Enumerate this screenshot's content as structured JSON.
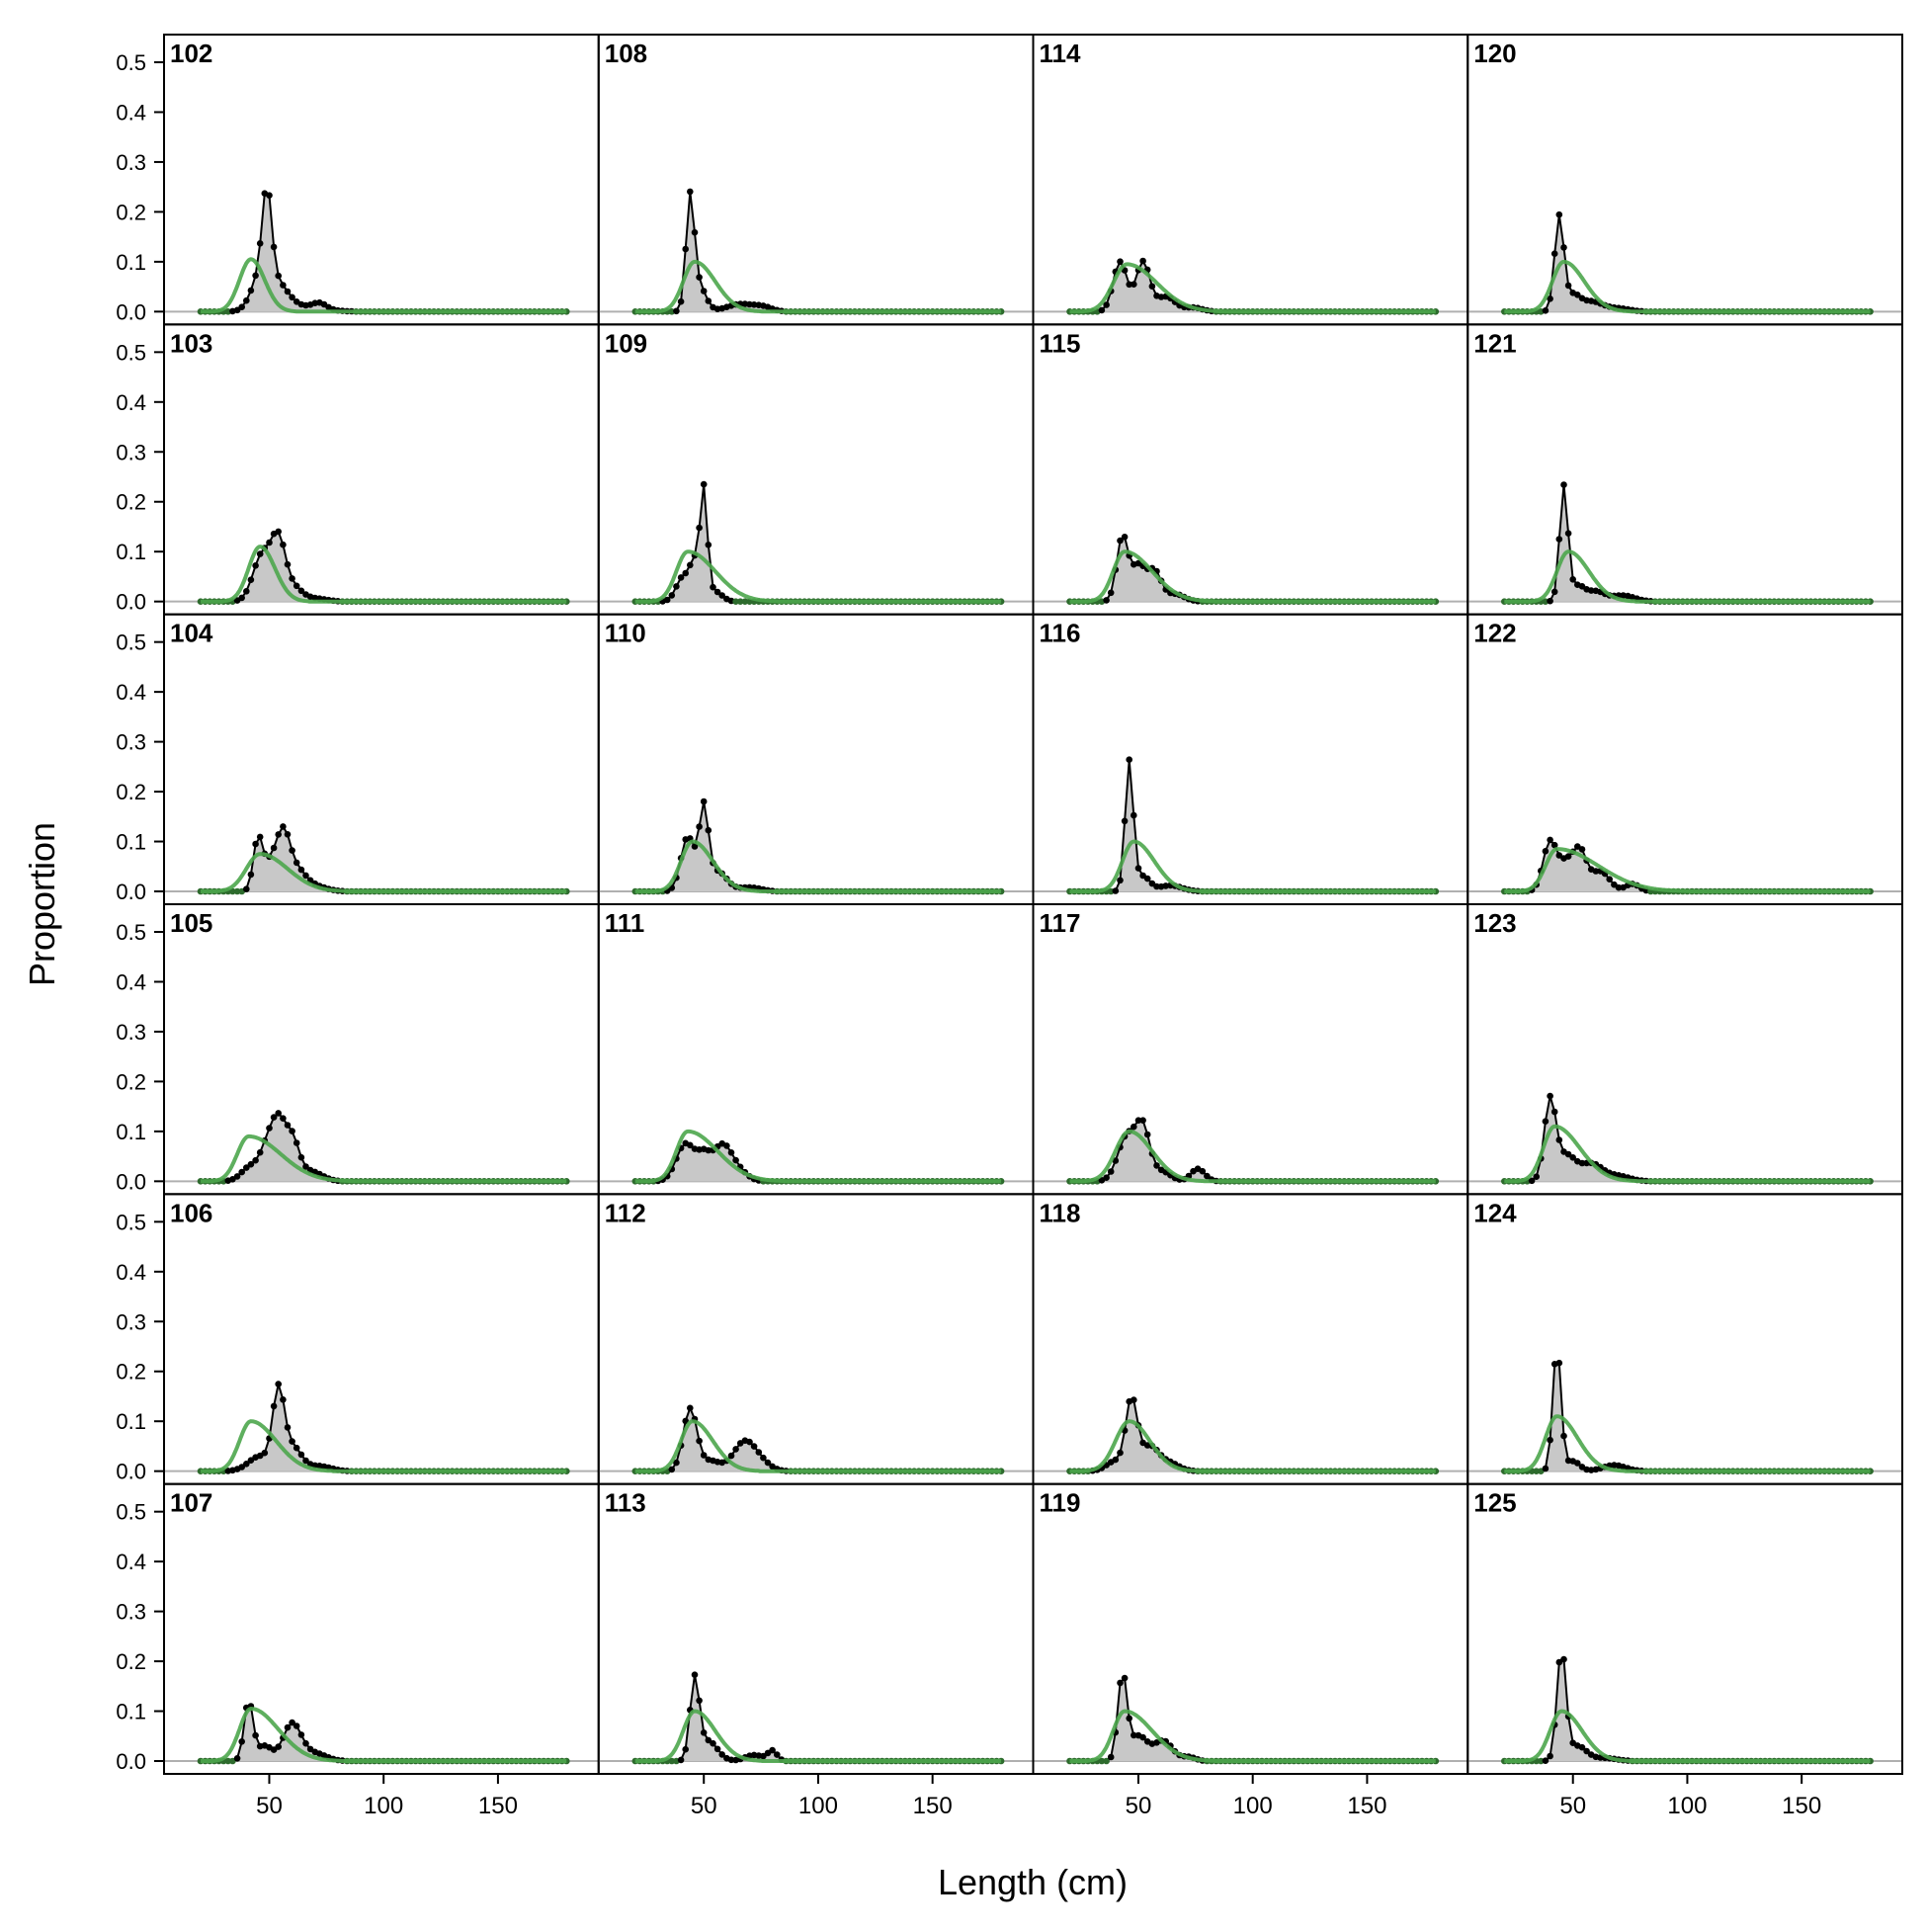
{
  "chart_data": {
    "type": "area",
    "xlabel": "Length (cm)",
    "ylabel": "Proportion",
    "xlim": [
      4,
      194
    ],
    "ylim": [
      0,
      0.5
    ],
    "x_ticks": [
      50,
      100,
      150
    ],
    "x_tick_labels": [
      "50",
      "100",
      "150"
    ],
    "y_ticks": [
      0,
      0.1,
      0.2,
      0.3,
      0.4,
      0.5
    ],
    "y_tick_labels": [
      "0.0",
      "0.1",
      "0.2",
      "0.3",
      "0.4",
      "0.5"
    ],
    "layout": {
      "rows": 6,
      "cols": 4,
      "order": "column-major"
    },
    "colors": {
      "observed_fill": "#c8c8c8",
      "observed_line": "#000000",
      "expected_line": "#4ca64c",
      "zero_dots": "#2d6b2d",
      "zero_line": "#b0b0b0"
    },
    "x_bins": {
      "start": 20,
      "end": 180,
      "step": 2
    },
    "panels": [
      {
        "label": "102",
        "observed_peaks": [
          [
            46,
            0.06,
            4
          ],
          [
            49,
            0.17,
            2
          ],
          [
            53,
            0.05,
            5
          ],
          [
            62,
            0.01,
            10
          ],
          [
            72,
            0.012,
            3
          ]
        ],
        "expected": {
          "mode": 42,
          "sd_left": 5,
          "sd_right": 6,
          "height": 0.105
        }
      },
      {
        "label": "103",
        "observed_peaks": [
          [
            47,
            0.095,
            4
          ],
          [
            54,
            0.11,
            3
          ],
          [
            60,
            0.03,
            4
          ],
          [
            70,
            0.006,
            5
          ]
        ],
        "expected": {
          "mode": 46,
          "sd_left": 5,
          "sd_right": 6.5,
          "height": 0.11
        }
      },
      {
        "label": "104",
        "observed_peaks": [
          [
            45,
            0.1,
            2
          ],
          [
            50,
            0.05,
            3
          ],
          [
            56,
            0.11,
            3
          ],
          [
            62,
            0.04,
            4
          ],
          [
            70,
            0.01,
            5
          ]
        ],
        "expected": {
          "mode": 46,
          "sd_left": 6,
          "sd_right": 12,
          "height": 0.075
        }
      },
      {
        "label": "105",
        "observed_peaks": [
          [
            42,
            0.03,
            4
          ],
          [
            49,
            0.06,
            3
          ],
          [
            54,
            0.11,
            3
          ],
          [
            60,
            0.08,
            3
          ],
          [
            68,
            0.02,
            5
          ]
        ],
        "expected": {
          "mode": 41,
          "sd_left": 5,
          "sd_right": 14,
          "height": 0.09
        }
      },
      {
        "label": "106",
        "observed_peaks": [
          [
            46,
            0.03,
            5
          ],
          [
            54,
            0.15,
            2.5
          ],
          [
            60,
            0.05,
            4
          ],
          [
            72,
            0.01,
            5
          ]
        ],
        "expected": {
          "mode": 42,
          "sd_left": 5,
          "sd_right": 11,
          "height": 0.1
        }
      },
      {
        "label": "107",
        "observed_peaks": [
          [
            41,
            0.12,
            2
          ],
          [
            48,
            0.03,
            3
          ],
          [
            60,
            0.075,
            4
          ],
          [
            70,
            0.015,
            5
          ]
        ],
        "expected": {
          "mode": 42,
          "sd_left": 5,
          "sd_right": 12,
          "height": 0.105
        }
      },
      {
        "label": "108",
        "observed_peaks": [
          [
            44,
            0.22,
            1.8
          ],
          [
            48,
            0.05,
            3
          ],
          [
            66,
            0.015,
            6
          ],
          [
            76,
            0.008,
            4
          ]
        ],
        "expected": {
          "mode": 46,
          "sd_left": 5,
          "sd_right": 9,
          "height": 0.1
        }
      },
      {
        "label": "109",
        "observed_peaks": [
          [
            41,
            0.05,
            3
          ],
          [
            46,
            0.07,
            2
          ],
          [
            50,
            0.22,
            1.6
          ],
          [
            55,
            0.02,
            3
          ]
        ],
        "expected": {
          "mode": 43,
          "sd_left": 5,
          "sd_right": 12,
          "height": 0.1
        }
      },
      {
        "label": "110",
        "observed_peaks": [
          [
            43,
            0.11,
            3
          ],
          [
            50,
            0.16,
            2
          ],
          [
            56,
            0.04,
            4
          ],
          [
            70,
            0.008,
            5
          ]
        ],
        "expected": {
          "mode": 45,
          "sd_left": 5,
          "sd_right": 9,
          "height": 0.1
        }
      },
      {
        "label": "111",
        "observed_peaks": [
          [
            42,
            0.075,
            4
          ],
          [
            50,
            0.045,
            3
          ],
          [
            58,
            0.07,
            4
          ],
          [
            65,
            0.02,
            4
          ]
        ],
        "expected": {
          "mode": 43,
          "sd_left": 5,
          "sd_right": 13,
          "height": 0.1
        }
      },
      {
        "label": "112",
        "observed_peaks": [
          [
            44,
            0.125,
            3
          ],
          [
            53,
            0.02,
            4
          ],
          [
            68,
            0.06,
            5
          ],
          [
            76,
            0.01,
            4
          ]
        ],
        "expected": {
          "mode": 45,
          "sd_left": 5,
          "sd_right": 9,
          "height": 0.1
        }
      },
      {
        "label": "113",
        "observed_peaks": [
          [
            46,
            0.16,
            2
          ],
          [
            52,
            0.04,
            4
          ],
          [
            72,
            0.012,
            4
          ],
          [
            80,
            0.02,
            2
          ]
        ],
        "expected": {
          "mode": 46,
          "sd_left": 5,
          "sd_right": 9,
          "height": 0.1
        }
      },
      {
        "label": "114",
        "observed_peaks": [
          [
            42,
            0.1,
            3
          ],
          [
            52,
            0.1,
            3
          ],
          [
            62,
            0.03,
            4
          ],
          [
            74,
            0.008,
            4
          ]
        ],
        "expected": {
          "mode": 45,
          "sd_left": 6,
          "sd_right": 13,
          "height": 0.095
        }
      },
      {
        "label": "115",
        "observed_peaks": [
          [
            43,
            0.13,
            2.5
          ],
          [
            50,
            0.07,
            3
          ],
          [
            57,
            0.06,
            3
          ],
          [
            66,
            0.015,
            4
          ]
        ],
        "expected": {
          "mode": 44,
          "sd_left": 5,
          "sd_right": 12,
          "height": 0.1
        }
      },
      {
        "label": "116",
        "observed_peaks": [
          [
            46,
            0.26,
            1.8
          ],
          [
            52,
            0.03,
            3
          ],
          [
            64,
            0.012,
            5
          ]
        ],
        "expected": {
          "mode": 48,
          "sd_left": 5,
          "sd_right": 9,
          "height": 0.1
        }
      },
      {
        "label": "117",
        "observed_peaks": [
          [
            45,
            0.09,
            4
          ],
          [
            52,
            0.1,
            3
          ],
          [
            60,
            0.02,
            4
          ],
          [
            76,
            0.025,
            3
          ]
        ],
        "expected": {
          "mode": 46,
          "sd_left": 6,
          "sd_right": 10,
          "height": 0.1
        }
      },
      {
        "label": "118",
        "observed_peaks": [
          [
            40,
            0.02,
            4
          ],
          [
            47,
            0.14,
            2.5
          ],
          [
            55,
            0.05,
            4
          ],
          [
            64,
            0.015,
            4
          ]
        ],
        "expected": {
          "mode": 46,
          "sd_left": 6,
          "sd_right": 9,
          "height": 0.1
        }
      },
      {
        "label": "119",
        "observed_peaks": [
          [
            43,
            0.17,
            2
          ],
          [
            50,
            0.05,
            4
          ],
          [
            61,
            0.04,
            4
          ],
          [
            72,
            0.008,
            3
          ]
        ],
        "expected": {
          "mode": 44,
          "sd_left": 5,
          "sd_right": 12,
          "height": 0.1
        }
      },
      {
        "label": "120",
        "observed_peaks": [
          [
            44,
            0.19,
            2
          ],
          [
            50,
            0.03,
            3
          ],
          [
            58,
            0.02,
            5
          ],
          [
            70,
            0.006,
            5
          ]
        ],
        "expected": {
          "mode": 46,
          "sd_left": 5,
          "sd_right": 9,
          "height": 0.1
        }
      },
      {
        "label": "121",
        "observed_peaks": [
          [
            46,
            0.23,
            1.8
          ],
          [
            52,
            0.03,
            3
          ],
          [
            60,
            0.02,
            4
          ],
          [
            72,
            0.012,
            5
          ]
        ],
        "expected": {
          "mode": 48,
          "sd_left": 5,
          "sd_right": 9,
          "height": 0.1
        }
      },
      {
        "label": "122",
        "observed_peaks": [
          [
            40,
            0.1,
            3
          ],
          [
            47,
            0.05,
            3
          ],
          [
            53,
            0.08,
            3
          ],
          [
            62,
            0.04,
            4
          ],
          [
            76,
            0.015,
            3
          ]
        ],
        "expected": {
          "mode": 43,
          "sd_left": 5,
          "sd_right": 18,
          "height": 0.085
        }
      },
      {
        "label": "123",
        "observed_peaks": [
          [
            40,
            0.16,
            2.5
          ],
          [
            47,
            0.05,
            4
          ],
          [
            58,
            0.035,
            5
          ],
          [
            70,
            0.01,
            5
          ]
        ],
        "expected": {
          "mode": 42,
          "sd_left": 5,
          "sd_right": 11,
          "height": 0.11
        }
      },
      {
        "label": "124",
        "observed_peaks": [
          [
            43,
            0.25,
            1.8
          ],
          [
            50,
            0.02,
            3
          ],
          [
            68,
            0.012,
            5
          ]
        ],
        "expected": {
          "mode": 43,
          "sd_left": 5,
          "sd_right": 9,
          "height": 0.11
        }
      },
      {
        "label": "125",
        "observed_peaks": [
          [
            45,
            0.22,
            2
          ],
          [
            52,
            0.03,
            4
          ],
          [
            64,
            0.006,
            5
          ]
        ],
        "expected": {
          "mode": 45,
          "sd_left": 5,
          "sd_right": 9,
          "height": 0.1
        }
      }
    ]
  }
}
